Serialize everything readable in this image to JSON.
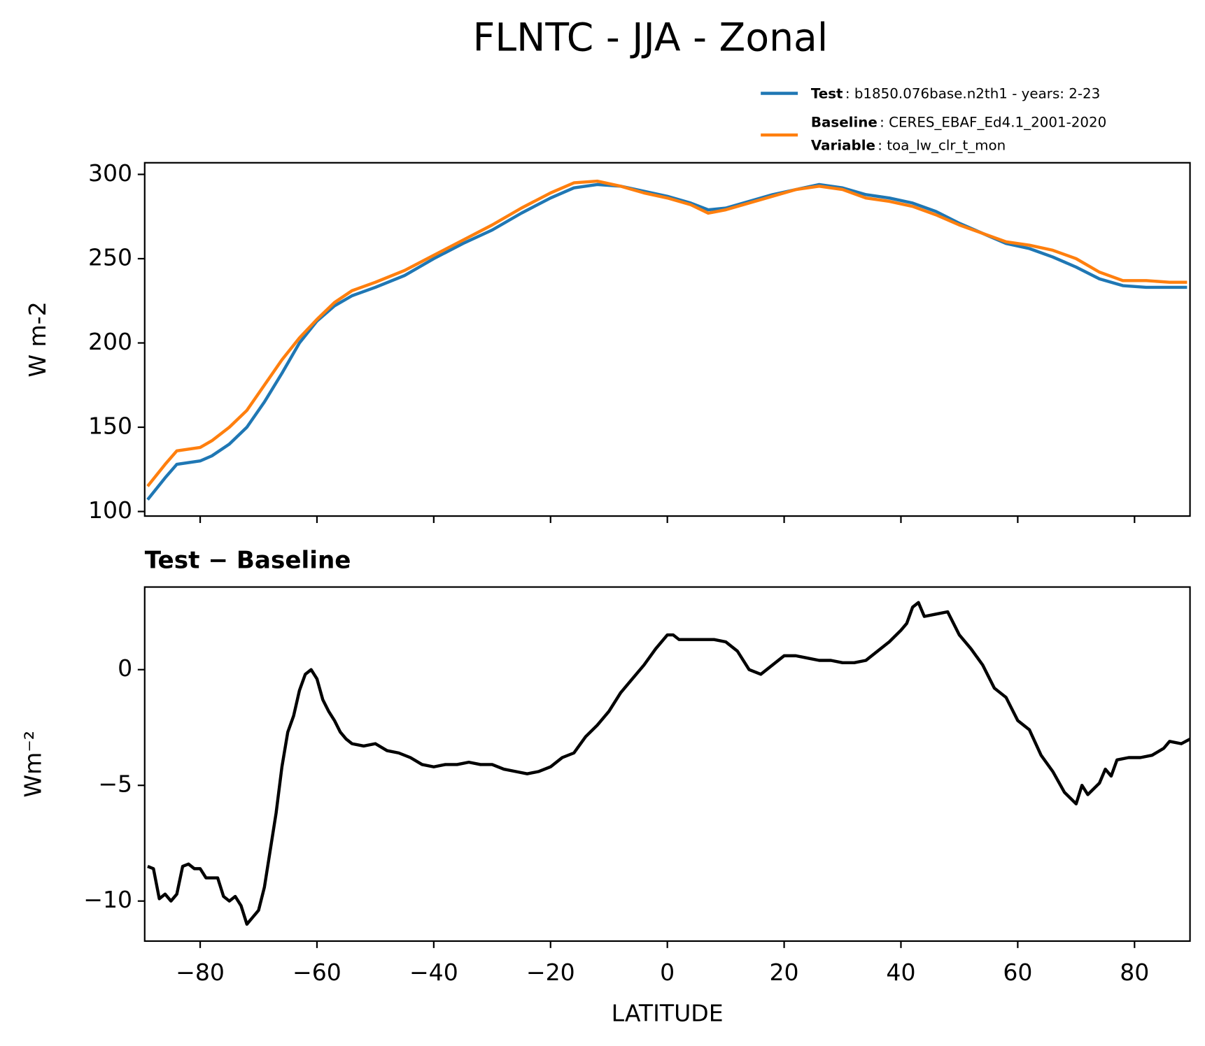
{
  "title": "FLNTC - JJA - Zonal",
  "chart_data": [
    {
      "type": "line",
      "ylabel": "W m-2",
      "x": [
        -89,
        -86,
        -84,
        -80,
        -78,
        -75,
        -72,
        -69,
        -66,
        -63,
        -60,
        -57,
        -54,
        -50,
        -45,
        -40,
        -35,
        -30,
        -25,
        -20,
        -16,
        -12,
        -8,
        -4,
        0,
        4,
        7,
        10,
        14,
        18,
        22,
        26,
        30,
        34,
        38,
        42,
        46,
        50,
        54,
        58,
        62,
        66,
        70,
        74,
        78,
        82,
        86,
        89
      ],
      "series": [
        {
          "name": "Test",
          "label": ": b1850.076base.n2th1 - years: 2-23",
          "color": "#1f77b4",
          "values": [
            107,
            120,
            128,
            130,
            133,
            140,
            150,
            165,
            182,
            200,
            213,
            222,
            228,
            233,
            240,
            250,
            259,
            267,
            277,
            286,
            292,
            294,
            293,
            290,
            287,
            283,
            279,
            280,
            284,
            288,
            291,
            294,
            292,
            288,
            286,
            283,
            278,
            271,
            265,
            259,
            256,
            251,
            245,
            238,
            234,
            233,
            233,
            233
          ]
        },
        {
          "name": "Baseline",
          "label": ": CERES_EBAF_Ed4.1_2001-2020",
          "color": "#ff7f0e",
          "values": [
            115,
            128,
            136,
            138,
            142,
            150,
            160,
            175,
            190,
            203,
            214,
            224,
            231,
            236,
            243,
            252,
            261,
            270,
            280,
            289,
            295,
            296,
            293,
            289,
            286,
            282,
            277,
            279,
            283,
            287,
            291,
            293,
            291,
            286,
            284,
            281,
            276,
            270,
            265,
            260,
            258,
            255,
            250,
            242,
            237,
            237,
            236,
            236
          ]
        }
      ],
      "legend_extra": {
        "name": "Variable",
        "label": ": toa_lw_clr_t_mon"
      },
      "xlim": [
        -89.5,
        89.5
      ],
      "ylim": [
        97.3,
        306.9
      ],
      "xticks": [
        -80,
        -60,
        -40,
        -20,
        0,
        20,
        40,
        60,
        80
      ],
      "yticks": [
        100,
        150,
        200,
        250,
        300
      ]
    },
    {
      "type": "line",
      "title": "Test − Baseline",
      "xlabel": "LATITUDE",
      "ylabel": "Wm⁻²",
      "x": [
        -89,
        -88,
        -87,
        -86,
        -85,
        -84,
        -83,
        -82,
        -81,
        -80,
        -79,
        -78,
        -77,
        -76,
        -75,
        -74,
        -73,
        -72,
        -71,
        -70,
        -69,
        -68,
        -67,
        -66,
        -65,
        -64,
        -63,
        -62,
        -61,
        -60,
        -59,
        -58,
        -57,
        -56,
        -55,
        -54,
        -52,
        -50,
        -48,
        -46,
        -44,
        -42,
        -40,
        -38,
        -36,
        -34,
        -32,
        -30,
        -28,
        -26,
        -24,
        -22,
        -20,
        -18,
        -16,
        -14,
        -12,
        -10,
        -8,
        -6,
        -4,
        -2,
        0,
        1,
        2,
        4,
        6,
        8,
        10,
        12,
        14,
        16,
        18,
        20,
        22,
        24,
        26,
        28,
        30,
        32,
        34,
        36,
        38,
        40,
        41,
        42,
        43,
        44,
        46,
        48,
        50,
        52,
        54,
        56,
        58,
        60,
        62,
        64,
        66,
        68,
        70,
        71,
        72,
        74,
        75,
        76,
        77,
        79,
        81,
        83,
        85,
        86,
        88,
        89.5
      ],
      "series": [
        {
          "color": "#000000",
          "values": [
            -8.5,
            -8.6,
            -9.9,
            -9.7,
            -10.0,
            -9.7,
            -8.5,
            -8.4,
            -8.6,
            -8.6,
            -9.0,
            -9.0,
            -9.0,
            -9.8,
            -10.0,
            -9.8,
            -10.2,
            -11.0,
            -10.7,
            -10.4,
            -9.4,
            -7.8,
            -6.2,
            -4.2,
            -2.7,
            -2.0,
            -0.9,
            -0.2,
            0.0,
            -0.4,
            -1.3,
            -1.8,
            -2.2,
            -2.7,
            -3.0,
            -3.2,
            -3.3,
            -3.2,
            -3.5,
            -3.6,
            -3.8,
            -4.1,
            -4.2,
            -4.1,
            -4.1,
            -4.0,
            -4.1,
            -4.1,
            -4.3,
            -4.4,
            -4.5,
            -4.4,
            -4.2,
            -3.8,
            -3.6,
            -2.9,
            -2.4,
            -1.8,
            -1.0,
            -0.4,
            0.2,
            0.9,
            1.5,
            1.5,
            1.3,
            1.3,
            1.3,
            1.3,
            1.2,
            0.8,
            0.0,
            -0.2,
            0.2,
            0.6,
            0.6,
            0.5,
            0.4,
            0.4,
            0.3,
            0.3,
            0.4,
            0.8,
            1.2,
            1.7,
            2.0,
            2.7,
            2.9,
            2.3,
            2.4,
            2.5,
            1.5,
            0.9,
            0.2,
            -0.8,
            -1.2,
            -2.2,
            -2.6,
            -3.7,
            -4.4,
            -5.3,
            -5.8,
            -5.0,
            -5.4,
            -4.9,
            -4.3,
            -4.6,
            -3.9,
            -3.8,
            -3.8,
            -3.7,
            -3.4,
            -3.1,
            -3.2,
            -3.0
          ]
        }
      ],
      "xlim": [
        -89.5,
        89.5
      ],
      "ylim": [
        -11.73,
        3.57
      ],
      "xticks": [
        {
          "value": -80,
          "label": "−80"
        },
        {
          "value": -60,
          "label": "−60"
        },
        {
          "value": -40,
          "label": "−40"
        },
        {
          "value": -20,
          "label": "−20"
        },
        0,
        20,
        40,
        60,
        80
      ],
      "yticks": [
        {
          "value": -10,
          "label": "−10"
        },
        {
          "value": -5,
          "label": "−5"
        },
        0
      ]
    }
  ]
}
